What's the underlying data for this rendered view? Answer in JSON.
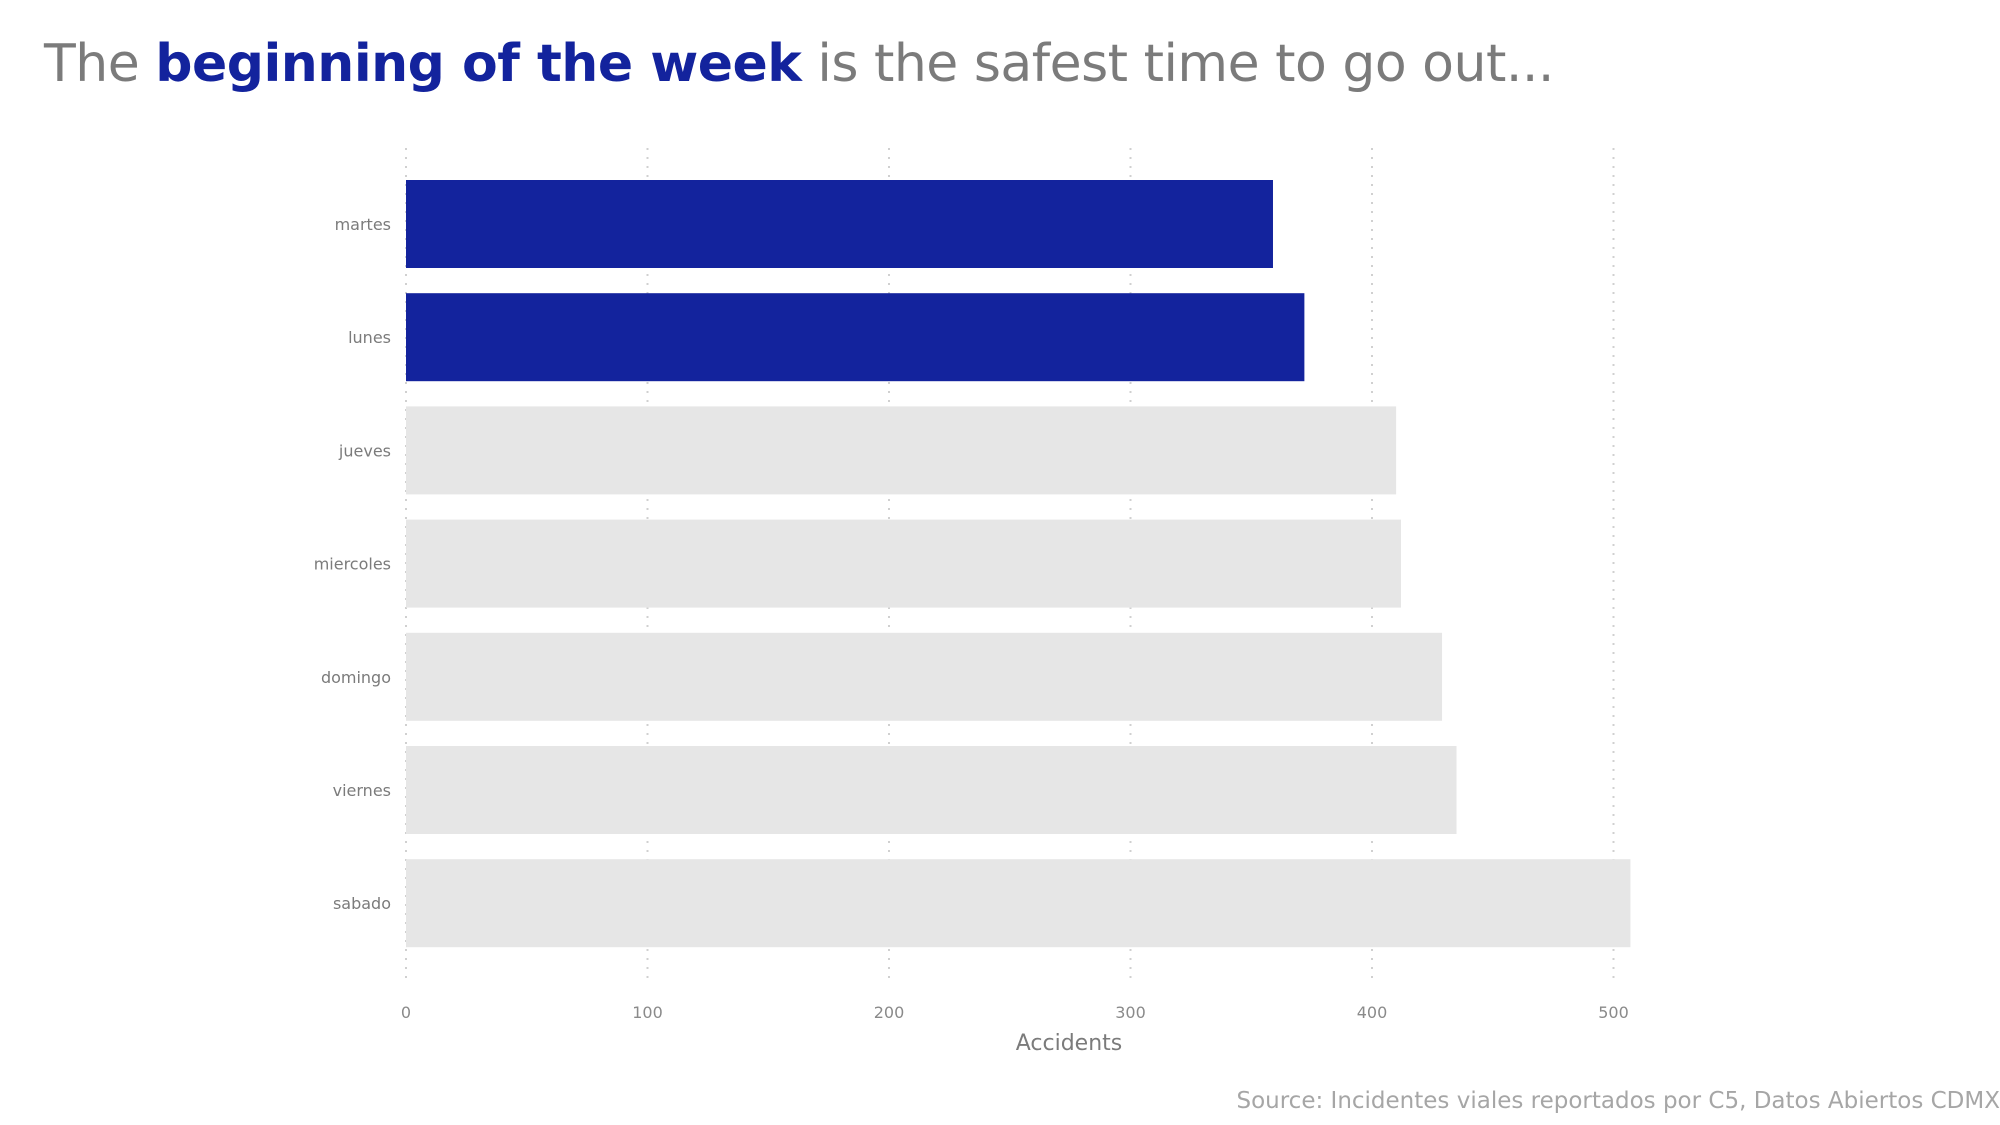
{
  "title": {
    "prefix": "The ",
    "highlight": "beginning of the week",
    "suffix": " is the safest time to go out..."
  },
  "source": "Source: Incidentes viales reportados por C5, Datos Abiertos CDMX",
  "colors": {
    "highlight": "#13239d",
    "bar": "#e6e6e6",
    "text": "#7b7b7b",
    "grid": "#d0d0d0"
  },
  "chart_data": {
    "type": "bar",
    "orientation": "horizontal",
    "categories": [
      "martes",
      "lunes",
      "jueves",
      "miercoles",
      "domingo",
      "viernes",
      "sabado"
    ],
    "values": [
      359,
      372,
      410,
      412,
      429,
      435,
      507
    ],
    "highlighted": [
      "martes",
      "lunes"
    ],
    "xlabel": "Accidents",
    "ylabel": "",
    "xlim": [
      0,
      530
    ],
    "xticks": [
      0,
      100,
      200,
      300,
      400,
      500
    ],
    "grid": "vertical dotted"
  }
}
